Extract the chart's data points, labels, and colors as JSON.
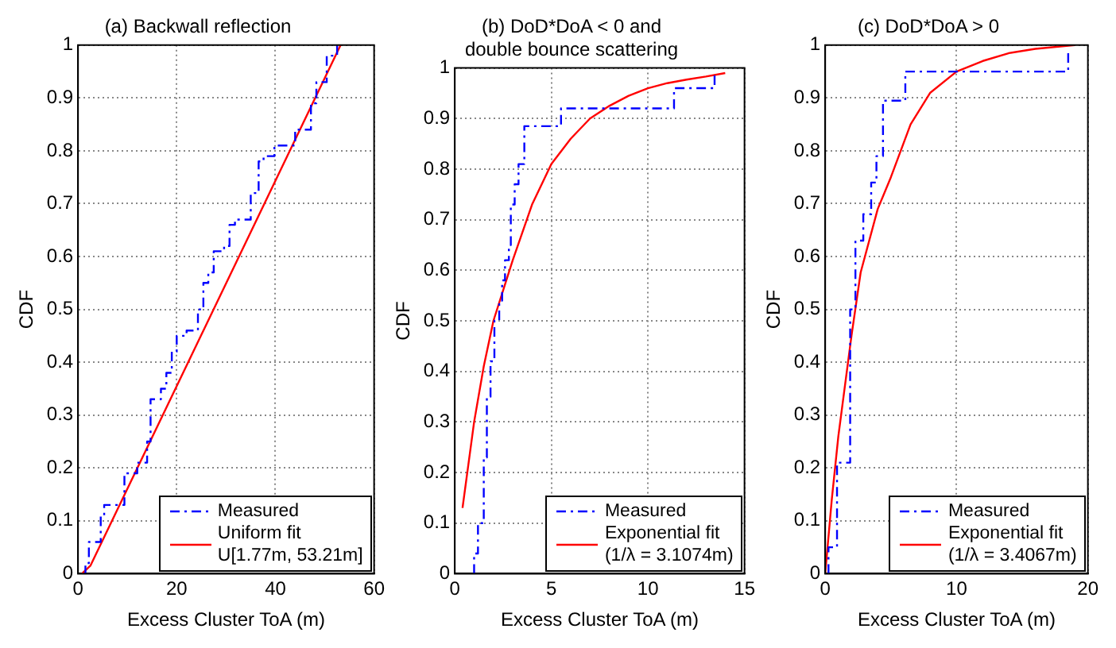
{
  "chart_data": [
    {
      "type": "line",
      "title": "(a) Backwall reflection",
      "xlabel": "Excess Cluster ToA (m)",
      "ylabel": "CDF",
      "xlim": [
        0,
        60
      ],
      "xticks": [
        0,
        20,
        40,
        60
      ],
      "ylim": [
        0,
        1
      ],
      "yticks": [
        0,
        0.1,
        0.2,
        0.3,
        0.4,
        0.5,
        0.6,
        0.7,
        0.8,
        0.9,
        1
      ],
      "grid": true,
      "legend": "bottom right",
      "marker": "none",
      "series": [
        {
          "name": "Measured",
          "type": "step",
          "color": "#0000ff",
          "line_style": "dashed",
          "x": [
            1.2,
            1.5,
            2.2,
            4.6,
            5.3,
            9.4,
            12.0,
            14.0,
            14.7,
            16.8,
            17.9,
            19.0,
            20.0,
            22.0,
            24.3,
            25.4,
            26.4,
            27.5,
            29.6,
            30.7,
            31.8,
            35.0,
            36.6,
            37.6,
            39.8,
            44.0,
            47.2,
            48.3,
            50.4,
            52.5
          ],
          "values": [
            0,
            0.02,
            0.06,
            0.11,
            0.13,
            0.19,
            0.21,
            0.25,
            0.33,
            0.35,
            0.38,
            0.42,
            0.45,
            0.46,
            0.5,
            0.55,
            0.57,
            0.61,
            0.62,
            0.66,
            0.67,
            0.72,
            0.78,
            0.79,
            0.81,
            0.84,
            0.89,
            0.93,
            0.98,
            1.0
          ]
        },
        {
          "name": "Uniform fit\nU[1.77m, 53.21m]",
          "type": "line",
          "color": "#ff0000",
          "line_style": "solid",
          "x": [
            0.8,
            2.5,
            53.21
          ],
          "values": [
            0,
            0.015,
            1
          ]
        }
      ]
    },
    {
      "type": "line",
      "title": "(b) DoD*DoA < 0 and\ndouble bounce scattering",
      "xlabel": "Excess Cluster ToA (m)",
      "ylabel": "CDF",
      "xlim": [
        0,
        15
      ],
      "xticks": [
        0,
        5,
        10,
        15
      ],
      "ylim": [
        0,
        1
      ],
      "yticks": [
        0,
        0.1,
        0.2,
        0.3,
        0.4,
        0.5,
        0.6,
        0.7,
        0.8,
        0.9,
        1
      ],
      "grid": true,
      "legend": "bottom right",
      "marker": "none",
      "series": [
        {
          "name": "Measured",
          "type": "step",
          "color": "#0000ff",
          "line_style": "dashed",
          "x": [
            1.0,
            1.0,
            1.2,
            1.5,
            1.66,
            1.85,
            2.05,
            2.3,
            2.45,
            2.6,
            2.8,
            2.9,
            3.1,
            3.3,
            3.6,
            5.5,
            11.35,
            13.45
          ],
          "values": [
            0,
            0.04,
            0.1,
            0.23,
            0.35,
            0.42,
            0.5,
            0.54,
            0.58,
            0.62,
            0.65,
            0.73,
            0.77,
            0.81,
            0.885,
            0.92,
            0.96,
            0.99
          ]
        },
        {
          "name": "Exponential fit\n(1/λ = 3.1074m)",
          "type": "line",
          "color": "#ff0000",
          "line_style": "solid",
          "x": [
            0.4,
            1,
            1.5,
            2,
            3,
            4,
            5,
            6,
            7,
            8,
            9,
            10,
            11,
            12,
            13,
            14
          ],
          "values": [
            0.13,
            0.3,
            0.41,
            0.5,
            0.62,
            0.73,
            0.81,
            0.86,
            0.9,
            0.925,
            0.945,
            0.96,
            0.97,
            0.977,
            0.983,
            0.99
          ]
        }
      ]
    },
    {
      "type": "line",
      "title": "(c) DoD*DoA > 0",
      "xlabel": "Excess Cluster ToA (m)",
      "ylabel": "CDF",
      "xlim": [
        0,
        20
      ],
      "xticks": [
        0,
        10,
        20
      ],
      "ylim": [
        0,
        1
      ],
      "yticks": [
        0,
        0.1,
        0.2,
        0.3,
        0.4,
        0.5,
        0.6,
        0.7,
        0.8,
        0.9,
        1
      ],
      "grid": true,
      "legend": "bottom right",
      "marker": "none",
      "series": [
        {
          "name": "Measured",
          "type": "step",
          "color": "#0000ff",
          "line_style": "dashed",
          "x": [
            0.25,
            0.25,
            0.9,
            1.9,
            2.3,
            2.9,
            3.5,
            3.9,
            4.4,
            6.1,
            18.5
          ],
          "values": [
            0,
            0.05,
            0.21,
            0.5,
            0.63,
            0.68,
            0.74,
            0.79,
            0.895,
            0.95,
            0.99
          ]
        },
        {
          "name": "Exponential fit\n(1/λ = 3.4067m)",
          "type": "line",
          "color": "#ff0000",
          "line_style": "solid",
          "x": [
            0,
            0.5,
            1,
            2,
            2.7,
            4,
            5,
            6.5,
            8,
            10,
            12,
            14,
            16,
            19
          ],
          "values": [
            0,
            0.14,
            0.26,
            0.45,
            0.57,
            0.69,
            0.75,
            0.85,
            0.91,
            0.95,
            0.97,
            0.985,
            0.993,
            1.0
          ]
        }
      ]
    }
  ]
}
